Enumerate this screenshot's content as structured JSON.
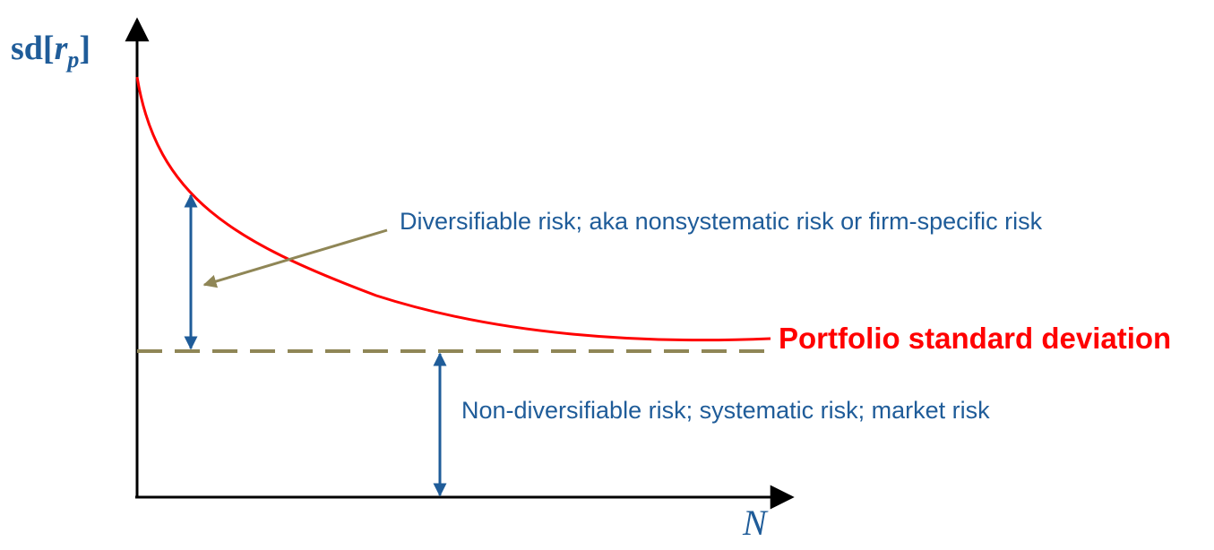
{
  "y_axis": {
    "prefix": "sd[",
    "variable": "r",
    "subscript": "p",
    "suffix": "]"
  },
  "x_axis": {
    "label": "N"
  },
  "curve": {
    "label": "Portfolio standard deviation"
  },
  "annotations": {
    "diversifiable": "Diversifiable risk; aka nonsystematic risk or firm-specific risk",
    "non_diversifiable": "Non-diversifiable risk; systematic risk; market risk"
  },
  "colors": {
    "curve": "#ff0000",
    "dashed_line": "#8f8656",
    "arrow": "#1f5c99",
    "pointer": "#8f8656",
    "text": "#1f5c99",
    "axis": "#000000"
  }
}
